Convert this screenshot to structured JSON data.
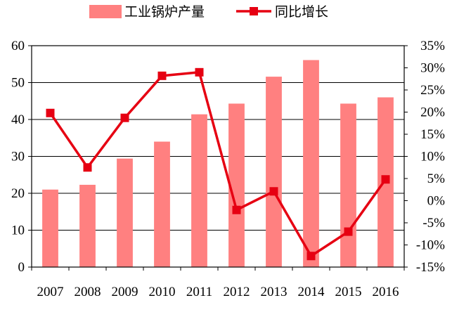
{
  "chart_data": {
    "type": "bar+line",
    "categories": [
      "2007",
      "2008",
      "2009",
      "2010",
      "2011",
      "2012",
      "2013",
      "2014",
      "2015",
      "2016"
    ],
    "series": [
      {
        "name": "工业锅炉产量",
        "type": "bar",
        "axis": "left",
        "color": "#ff8080",
        "values": [
          21,
          22.3,
          29.4,
          34,
          41.4,
          44.3,
          51.6,
          56.1,
          44.3,
          46
        ]
      },
      {
        "name": "同比增长",
        "type": "line",
        "axis": "right",
        "color": "#e60012",
        "marker": "square",
        "values": [
          19.8,
          7.5,
          18.7,
          28.2,
          29,
          -2.1,
          2.1,
          -12.5,
          -7,
          4.8
        ]
      }
    ],
    "left_axis": {
      "min": 0,
      "max": 60,
      "step": 10,
      "tick_labels": [
        "0",
        "10",
        "20",
        "30",
        "40",
        "50",
        "60"
      ]
    },
    "right_axis": {
      "min": -15,
      "max": 35,
      "step": 5,
      "tick_labels": [
        "-15%",
        "-10%",
        "-5%",
        "0%",
        "5%",
        "10%",
        "15%",
        "20%",
        "25%",
        "30%",
        "35%"
      ]
    },
    "title": "",
    "xlabel": "",
    "ylabel": "",
    "grid": "horizontal",
    "legend_position": "top-center"
  }
}
